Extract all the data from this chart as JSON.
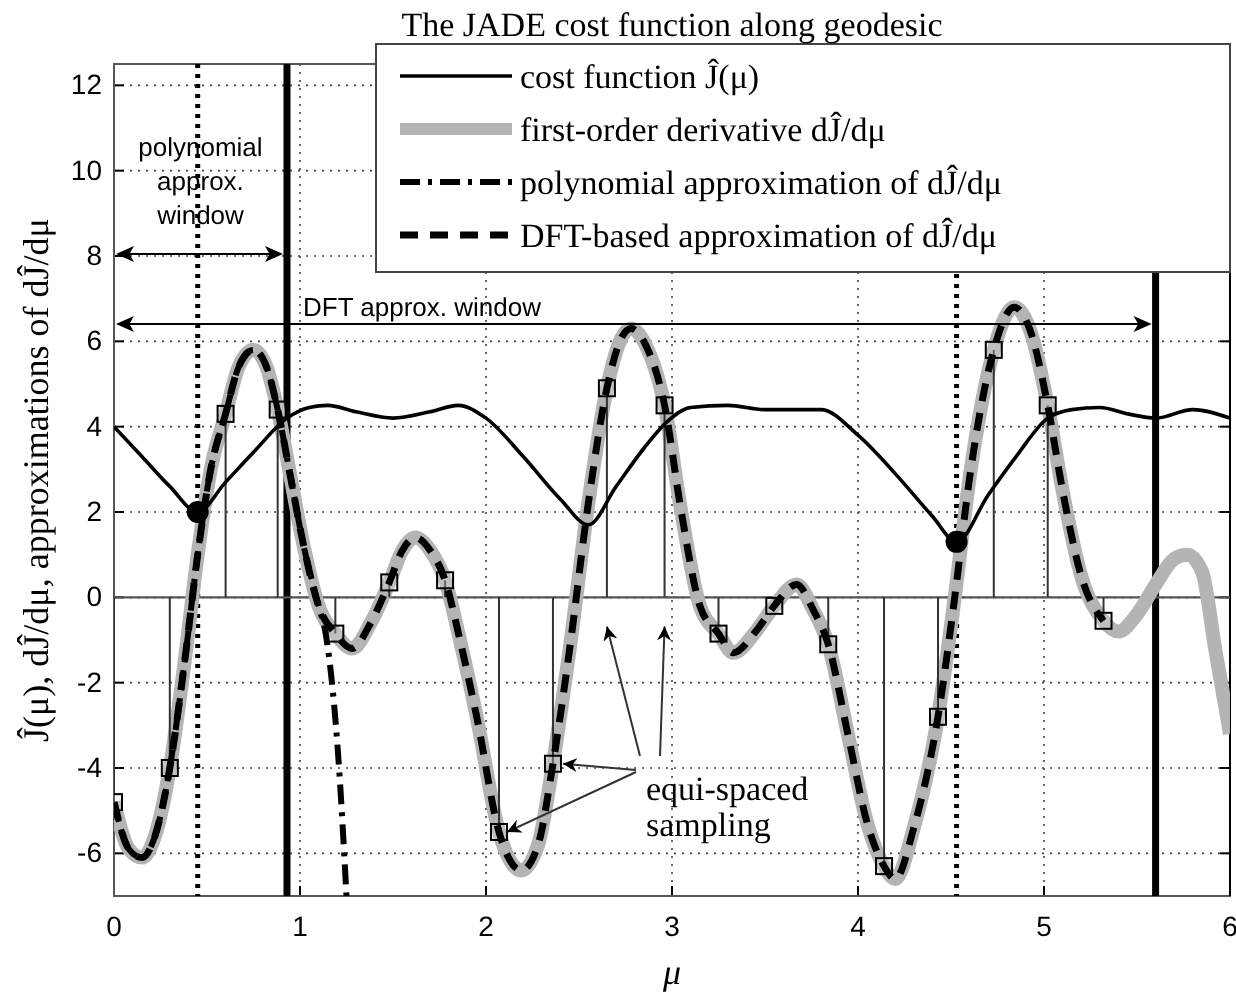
{
  "chart_data": {
    "type": "line",
    "title": "The JADE cost function along geodesic",
    "xlabel": "μ",
    "ylabel": "Ĵ(μ), dĴ/dμ, approximations of dĴ/dμ",
    "xlim": [
      0,
      6
    ],
    "ylim": [
      -7,
      12.5
    ],
    "xticks": [
      0,
      1,
      2,
      3,
      4,
      5,
      6
    ],
    "yticks": [
      -6,
      -4,
      -2,
      0,
      2,
      4,
      6,
      8,
      10,
      12
    ],
    "grid": true,
    "legend": "top right",
    "series": [
      {
        "name": "cost function Ĵ(μ)",
        "color": "#000000",
        "line_style": "solid",
        "x": [
          0,
          0.15,
          0.3,
          0.45,
          0.6,
          0.75,
          0.93,
          1.05,
          1.15,
          1.3,
          1.5,
          1.7,
          1.85,
          2.0,
          2.2,
          2.4,
          2.55,
          2.7,
          2.85,
          2.97,
          3.1,
          3.3,
          3.5,
          3.8,
          4.0,
          4.2,
          4.4,
          4.53,
          4.7,
          4.85,
          5.02,
          5.15,
          5.3,
          5.45,
          5.6,
          5.8,
          6.0
        ],
        "values": [
          4.0,
          3.3,
          2.6,
          2.0,
          2.7,
          3.4,
          4.2,
          4.45,
          4.5,
          4.35,
          4.2,
          4.35,
          4.5,
          4.2,
          3.3,
          2.3,
          1.7,
          2.6,
          3.5,
          4.1,
          4.45,
          4.5,
          4.4,
          4.4,
          3.8,
          2.9,
          1.9,
          1.3,
          2.4,
          3.3,
          4.2,
          4.4,
          4.45,
          4.3,
          4.2,
          4.4,
          4.2
        ]
      },
      {
        "name": "first-order derivative dĴ/dμ",
        "color": "#b4b4b4",
        "line_style": "solid",
        "x": [
          0,
          0.08,
          0.15,
          0.22,
          0.3,
          0.38,
          0.45,
          0.52,
          0.6,
          0.67,
          0.75,
          0.82,
          0.88,
          0.95,
          1.02,
          1.1,
          1.19,
          1.28,
          1.38,
          1.48,
          1.55,
          1.62,
          1.7,
          1.78,
          1.86,
          1.95,
          2.07,
          2.19,
          2.28,
          2.36,
          2.45,
          2.55,
          2.65,
          2.72,
          2.78,
          2.86,
          2.96,
          3.05,
          3.15,
          3.25,
          3.33,
          3.45,
          3.55,
          3.67,
          3.76,
          3.84,
          3.95,
          4.05,
          4.14,
          4.2,
          4.3,
          4.43,
          4.52,
          4.6,
          4.73,
          4.84,
          4.93,
          5.02,
          5.1,
          5.2,
          5.32,
          5.4,
          5.5,
          5.6,
          5.7,
          5.77,
          5.85,
          5.92,
          6.0
        ],
        "values": [
          -4.8,
          -5.9,
          -6.1,
          -5.6,
          -4.0,
          -1.5,
          1.0,
          3.0,
          4.3,
          5.4,
          5.8,
          5.4,
          4.4,
          2.8,
          1.2,
          -0.2,
          -0.85,
          -1.2,
          -0.6,
          0.35,
          1.1,
          1.4,
          1.1,
          0.4,
          -1.0,
          -2.8,
          -5.5,
          -6.4,
          -5.8,
          -3.9,
          -1.2,
          2.2,
          4.9,
          6.0,
          6.3,
          5.9,
          4.5,
          2.0,
          -0.2,
          -0.85,
          -1.3,
          -0.8,
          -0.2,
          0.3,
          -0.3,
          -1.1,
          -3.3,
          -5.3,
          -6.3,
          -6.6,
          -5.4,
          -2.8,
          0.0,
          2.8,
          5.8,
          6.8,
          6.2,
          4.5,
          2.5,
          0.5,
          -0.55,
          -0.8,
          -0.4,
          0.3,
          0.9,
          1.0,
          0.6,
          -1.2,
          -3.2
        ]
      },
      {
        "name": "polynomial approximation of dĴ/dμ",
        "color": "#000000",
        "line_style": "dashdot",
        "x": [
          0,
          0.08,
          0.15,
          0.22,
          0.3,
          0.38,
          0.45,
          0.52,
          0.6,
          0.67,
          0.75,
          0.82,
          0.88,
          0.95,
          1.02,
          1.1,
          1.14,
          1.21,
          1.25
        ],
        "values": [
          -4.8,
          -5.9,
          -6.1,
          -5.6,
          -4.0,
          -1.5,
          1.0,
          3.0,
          4.3,
          5.4,
          5.8,
          5.4,
          4.4,
          2.8,
          1.2,
          -0.2,
          -0.9,
          -4.0,
          -7.0
        ]
      },
      {
        "name": "DFT-based approximation of dĴ/dμ",
        "color": "#000000",
        "line_style": "dashed",
        "x": [
          0,
          0.08,
          0.15,
          0.22,
          0.3,
          0.38,
          0.45,
          0.52,
          0.6,
          0.67,
          0.75,
          0.82,
          0.88,
          0.95,
          1.02,
          1.1,
          1.19,
          1.28,
          1.38,
          1.48,
          1.55,
          1.62,
          1.7,
          1.78,
          1.86,
          1.95,
          2.07,
          2.19,
          2.28,
          2.36,
          2.45,
          2.55,
          2.65,
          2.72,
          2.78,
          2.86,
          2.96,
          3.05,
          3.15,
          3.25,
          3.33,
          3.45,
          3.55,
          3.67,
          3.76,
          3.84,
          3.95,
          4.05,
          4.14,
          4.2,
          4.3,
          4.43,
          4.52,
          4.6,
          4.73,
          4.84,
          4.93,
          5.02,
          5.1,
          5.2,
          5.32
        ],
        "values": [
          -4.8,
          -5.9,
          -6.1,
          -5.6,
          -4.0,
          -1.5,
          1.0,
          3.0,
          4.3,
          5.4,
          5.8,
          5.4,
          4.4,
          2.8,
          1.2,
          -0.2,
          -0.85,
          -1.2,
          -0.6,
          0.35,
          1.1,
          1.4,
          1.1,
          0.4,
          -1.0,
          -2.8,
          -5.5,
          -6.4,
          -5.8,
          -3.9,
          -1.2,
          2.2,
          4.9,
          6.0,
          6.3,
          5.9,
          4.5,
          2.0,
          -0.2,
          -0.85,
          -1.3,
          -0.8,
          -0.2,
          0.3,
          -0.3,
          -1.1,
          -3.3,
          -5.3,
          -6.3,
          -6.6,
          -5.4,
          -2.8,
          0.0,
          2.8,
          5.8,
          6.8,
          6.2,
          4.5,
          2.5,
          0.5,
          -0.55
        ]
      },
      {
        "type": "lollipop",
        "color": "#000000",
        "marker": "square",
        "x": [
          0,
          0.3,
          0.6,
          0.88,
          1.19,
          1.48,
          1.78,
          2.07,
          2.36,
          2.65,
          2.96,
          3.25,
          3.55,
          3.84,
          4.14,
          4.43,
          4.73,
          5.02,
          5.32
        ],
        "values": [
          -4.8,
          -4.0,
          4.3,
          4.4,
          -0.85,
          0.35,
          0.4,
          -5.5,
          -3.9,
          4.9,
          4.5,
          -0.85,
          -0.2,
          -1.1,
          -6.3,
          -2.8,
          5.8,
          4.5,
          -0.55
        ]
      },
      {
        "type": "scatter",
        "color": "#000000",
        "marker": "circle",
        "x": [
          0.45,
          4.53
        ],
        "values": [
          2.0,
          1.3
        ]
      }
    ],
    "ref_lines": [
      {
        "axis": "x",
        "value": 0.93,
        "color": "#000000",
        "line_style": "solid"
      },
      {
        "axis": "x",
        "value": 5.6,
        "color": "#000000",
        "line_style": "solid"
      },
      {
        "axis": "x",
        "value": 0.45,
        "color": "#000000",
        "line_style": "dotted"
      },
      {
        "axis": "x",
        "value": 4.53,
        "color": "#000000",
        "line_style": "dotted"
      },
      {
        "axis": "y",
        "value": 0,
        "color": "#555555",
        "line_style": "solid"
      }
    ],
    "annotations": [
      "polynomial approx. window",
      "DFT approx. window",
      {
        "text": "equi-spaced sampling",
        "x": 2.07,
        "y": -5.5
      }
    ]
  }
}
